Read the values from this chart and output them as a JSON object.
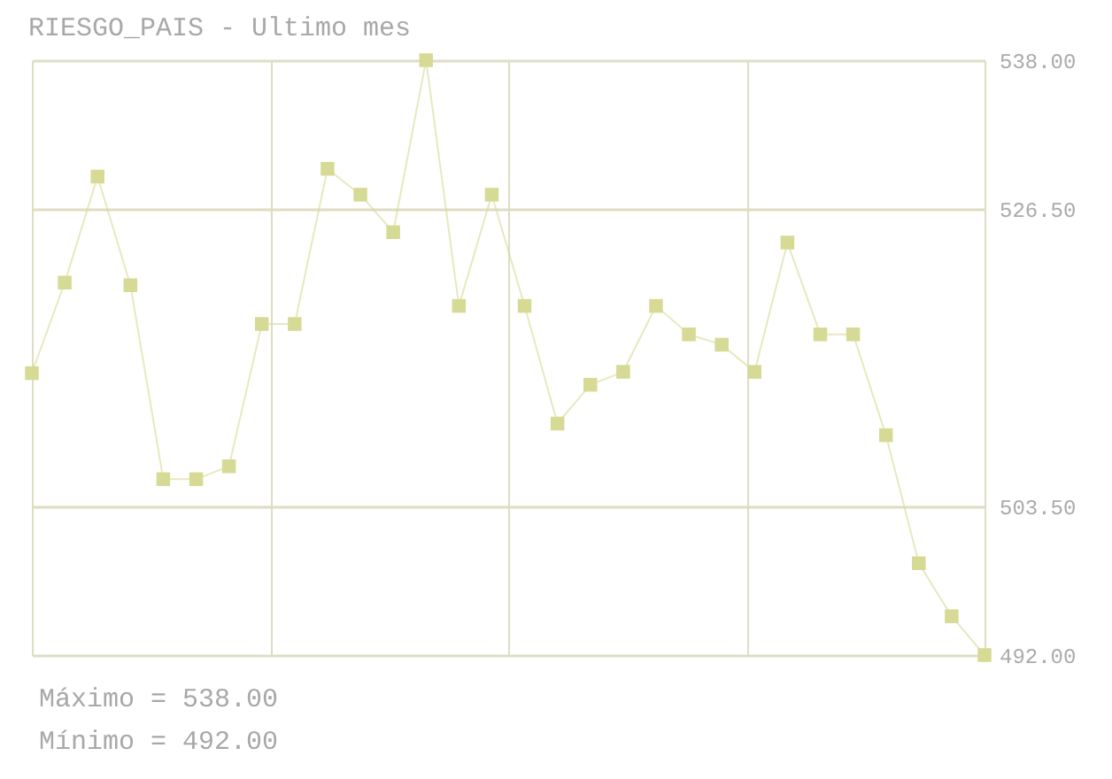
{
  "chart_data": {
    "type": "line",
    "title": "RIESGO_PAIS - Ultimo mes",
    "annotations": [
      "Máximo = 538.00",
      "Mínimo = 492.00"
    ],
    "categories": [
      null,
      null,
      null,
      null,
      null,
      null,
      null,
      null,
      null,
      null,
      null,
      null,
      null,
      null,
      null,
      null,
      null,
      null,
      null,
      null,
      null,
      null,
      null,
      null,
      null,
      null,
      null,
      null,
      null,
      null
    ],
    "series": [
      {
        "color": "#d6da94",
        "values": [
          513.8,
          520.8,
          529.0,
          520.6,
          505.6,
          505.6,
          506.6,
          517.6,
          517.6,
          529.6,
          527.6,
          524.7,
          538.0,
          519.0,
          527.6,
          519.0,
          509.9,
          512.9,
          513.9,
          519.0,
          516.8,
          516.0,
          513.9,
          523.9,
          516.8,
          516.8,
          509.0,
          499.1,
          495.0,
          492.0
        ]
      }
    ],
    "ylim": [
      492,
      538
    ],
    "yticks": [
      {
        "value": 492,
        "label": "492.00"
      },
      {
        "value": 503.5,
        "label": "503.50"
      },
      {
        "value": 526.5,
        "label": "526.50"
      },
      {
        "value": 538,
        "label": "538.00"
      }
    ],
    "grid": true,
    "marker": "square",
    "line_style": "solid"
  }
}
